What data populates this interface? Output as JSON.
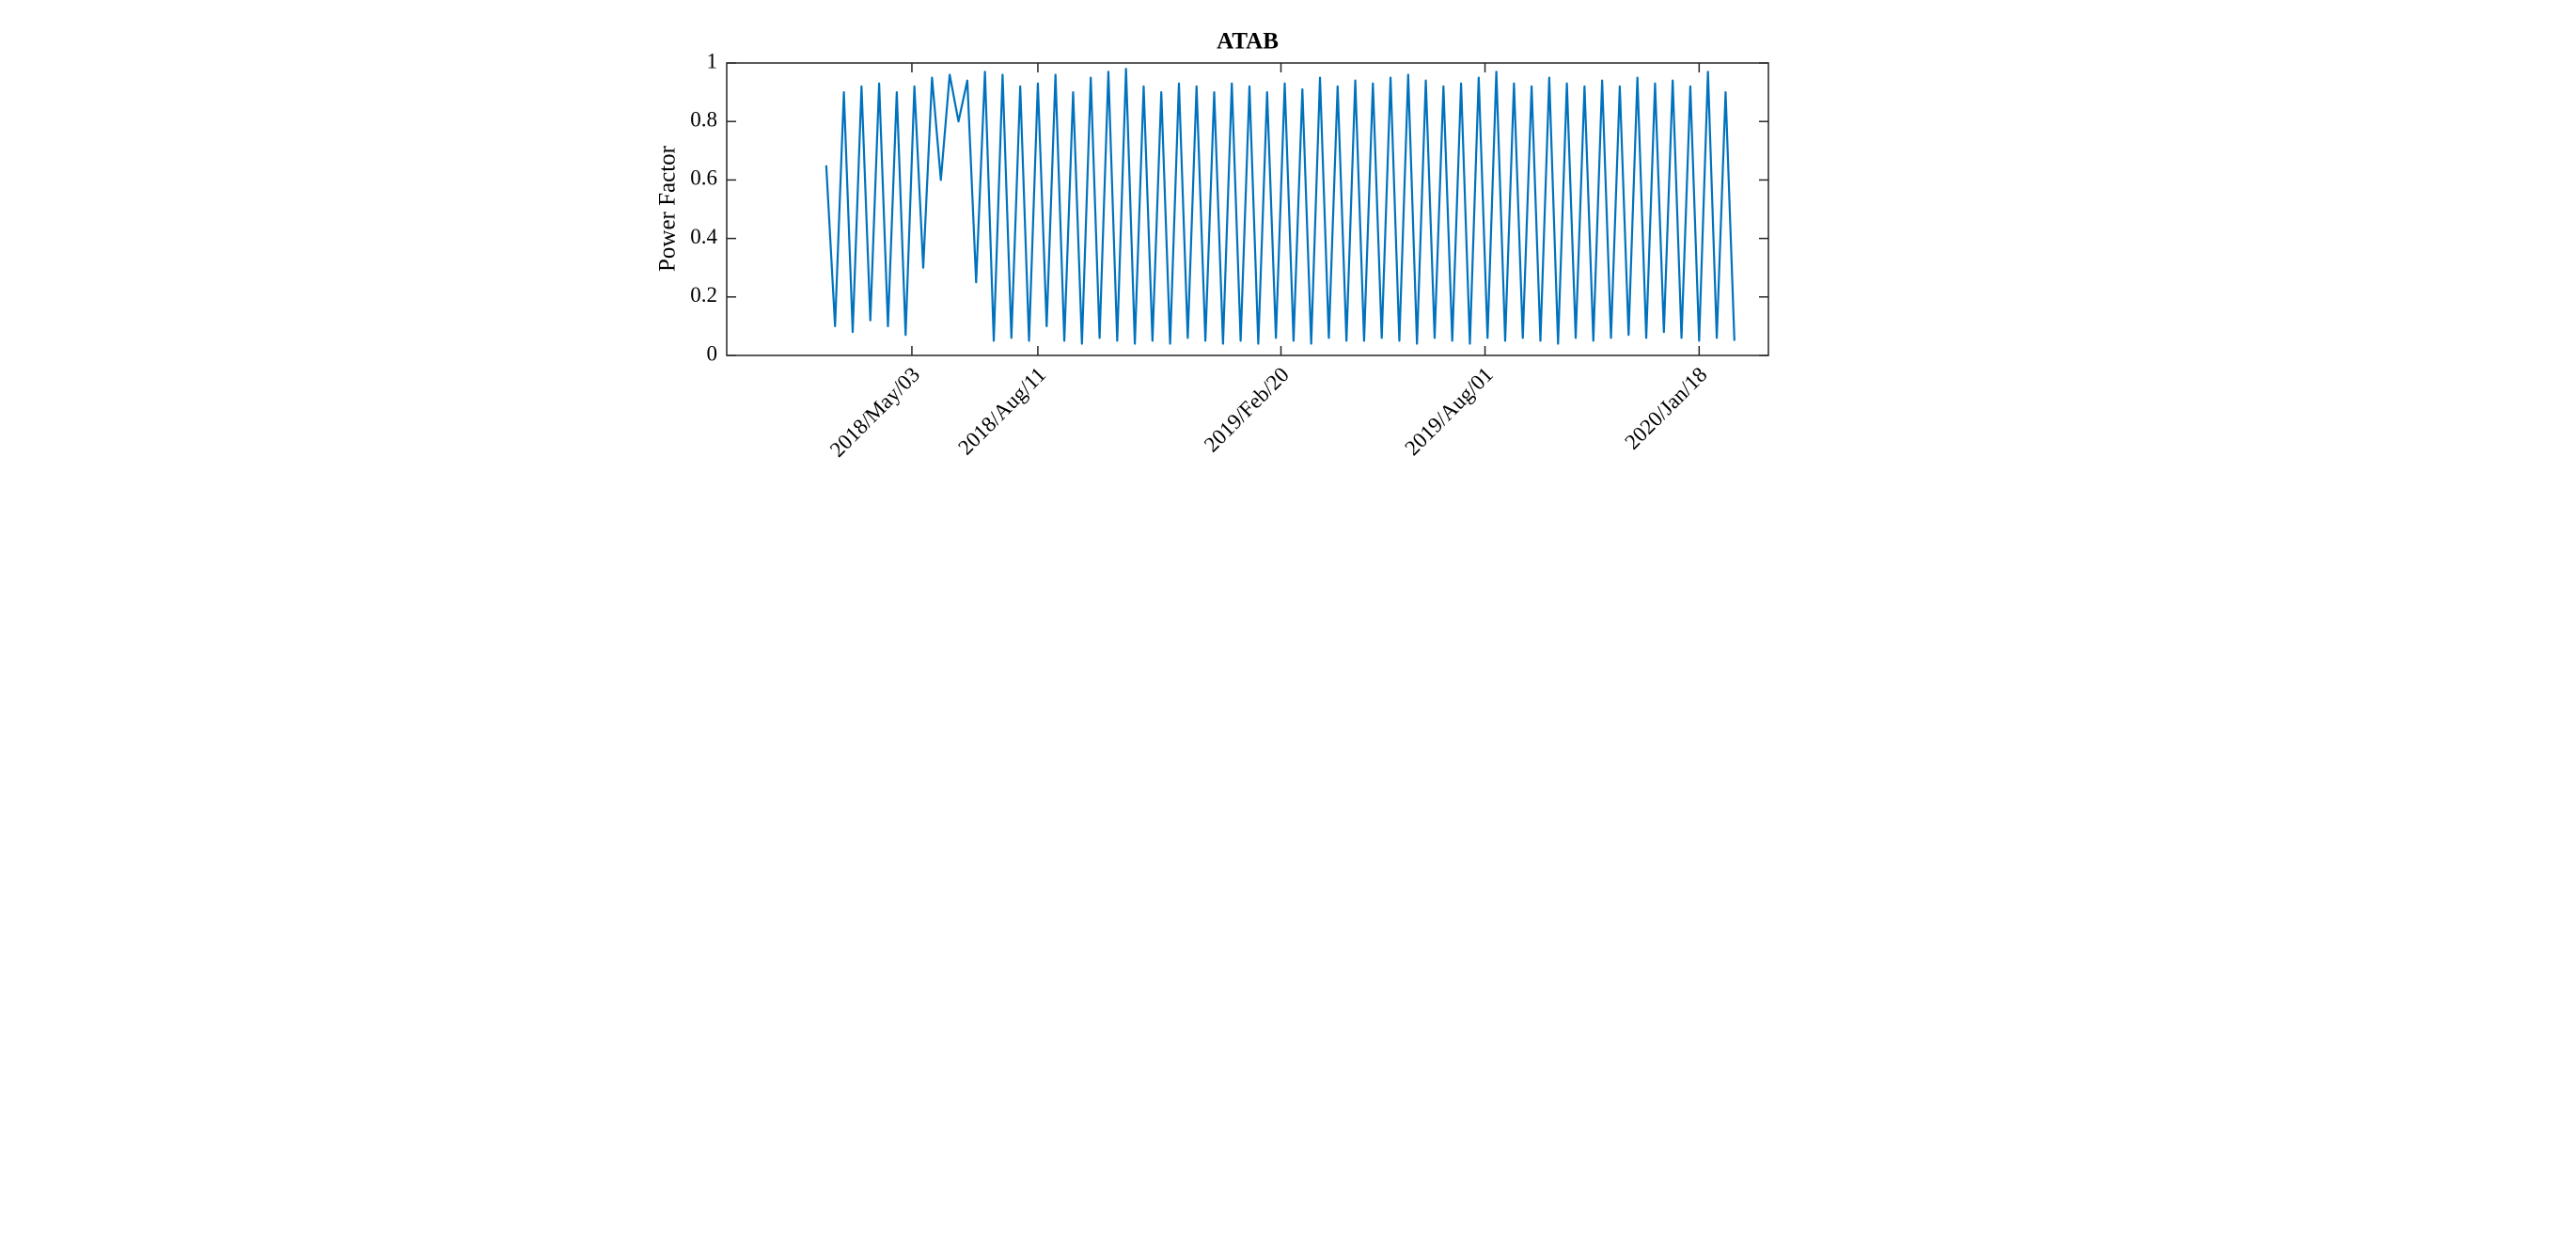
{
  "chart_data": {
    "type": "line",
    "title": "ATAB",
    "ylabel": "Power Factor",
    "x": [
      "2018-02-24",
      "2018-03-03",
      "2018-03-10",
      "2018-03-17",
      "2018-03-24",
      "2018-03-31",
      "2018-04-07",
      "2018-04-14",
      "2018-04-21",
      "2018-04-28",
      "2018-05-05",
      "2018-05-12",
      "2018-05-19",
      "2018-05-26",
      "2018-06-02",
      "2018-06-09",
      "2018-06-16",
      "2018-06-23",
      "2018-06-30",
      "2018-07-07",
      "2018-07-14",
      "2018-07-21",
      "2018-07-28",
      "2018-08-04",
      "2018-08-11",
      "2018-08-18",
      "2018-08-25",
      "2018-09-01",
      "2018-09-08",
      "2018-09-15",
      "2018-09-22",
      "2018-09-29",
      "2018-10-06",
      "2018-10-13",
      "2018-10-20",
      "2018-10-27",
      "2018-11-03",
      "2018-11-10",
      "2018-11-17",
      "2018-11-24",
      "2018-12-01",
      "2018-12-08",
      "2018-12-15",
      "2018-12-22",
      "2018-12-29",
      "2019-01-05",
      "2019-01-12",
      "2019-01-19",
      "2019-01-26",
      "2019-02-02",
      "2019-02-09",
      "2019-02-16",
      "2019-02-23",
      "2019-03-02",
      "2019-03-09",
      "2019-03-16",
      "2019-03-23",
      "2019-03-30",
      "2019-04-06",
      "2019-04-13",
      "2019-04-20",
      "2019-04-27",
      "2019-05-04",
      "2019-05-11",
      "2019-05-18",
      "2019-05-25",
      "2019-06-01",
      "2019-06-08",
      "2019-06-15",
      "2019-06-22",
      "2019-06-29",
      "2019-07-06",
      "2019-07-13",
      "2019-07-20",
      "2019-07-27",
      "2019-08-03",
      "2019-08-10",
      "2019-08-17",
      "2019-08-24",
      "2019-08-31",
      "2019-09-07",
      "2019-09-14",
      "2019-09-21",
      "2019-09-28",
      "2019-10-05",
      "2019-10-12",
      "2019-10-19",
      "2019-10-26",
      "2019-11-02",
      "2019-11-09",
      "2019-11-16",
      "2019-11-23",
      "2019-11-30",
      "2019-12-07",
      "2019-12-14",
      "2019-12-21",
      "2019-12-28",
      "2020-01-04",
      "2020-01-11",
      "2020-01-18",
      "2020-01-25",
      "2020-02-01",
      "2020-02-08",
      "2020-02-15"
    ],
    "series": [
      {
        "color": "#0072BD",
        "values": [
          0.65,
          0.1,
          0.9,
          0.08,
          0.92,
          0.12,
          0.93,
          0.1,
          0.9,
          0.07,
          0.92,
          0.3,
          0.95,
          0.6,
          0.96,
          0.8,
          0.94,
          0.25,
          0.97,
          0.05,
          0.96,
          0.06,
          0.92,
          0.05,
          0.93,
          0.1,
          0.96,
          0.05,
          0.9,
          0.04,
          0.95,
          0.06,
          0.97,
          0.05,
          0.98,
          0.04,
          0.92,
          0.05,
          0.9,
          0.04,
          0.93,
          0.06,
          0.92,
          0.05,
          0.9,
          0.04,
          0.93,
          0.05,
          0.92,
          0.04,
          0.9,
          0.06,
          0.93,
          0.05,
          0.91,
          0.04,
          0.95,
          0.06,
          0.92,
          0.05,
          0.94,
          0.05,
          0.93,
          0.06,
          0.95,
          0.05,
          0.96,
          0.04,
          0.94,
          0.06,
          0.92,
          0.05,
          0.93,
          0.04,
          0.95,
          0.06,
          0.97,
          0.05,
          0.93,
          0.06,
          0.92,
          0.05,
          0.95,
          0.04,
          0.93,
          0.06,
          0.92,
          0.05,
          0.94,
          0.06,
          0.92,
          0.07,
          0.95,
          0.06,
          0.93,
          0.08,
          0.94,
          0.06,
          0.92,
          0.05,
          0.97,
          0.06,
          0.9,
          0.05
        ]
      }
    ],
    "xlim": [
      "2017-12-07",
      "2020-03-13"
    ],
    "xticks": [
      {
        "value": "2018-05-03",
        "label": "2018/May/03"
      },
      {
        "value": "2018-08-11",
        "label": "2018/Aug/11"
      },
      {
        "value": "2019-02-20",
        "label": "2019/Feb/20"
      },
      {
        "value": "2019-08-01",
        "label": "2019/Aug/01"
      },
      {
        "value": "2020-01-18",
        "label": "2020/Jan/18"
      }
    ],
    "ylim": [
      0,
      1
    ],
    "yticks": [
      0,
      0.2,
      0.4,
      0.6,
      0.8,
      1
    ]
  }
}
